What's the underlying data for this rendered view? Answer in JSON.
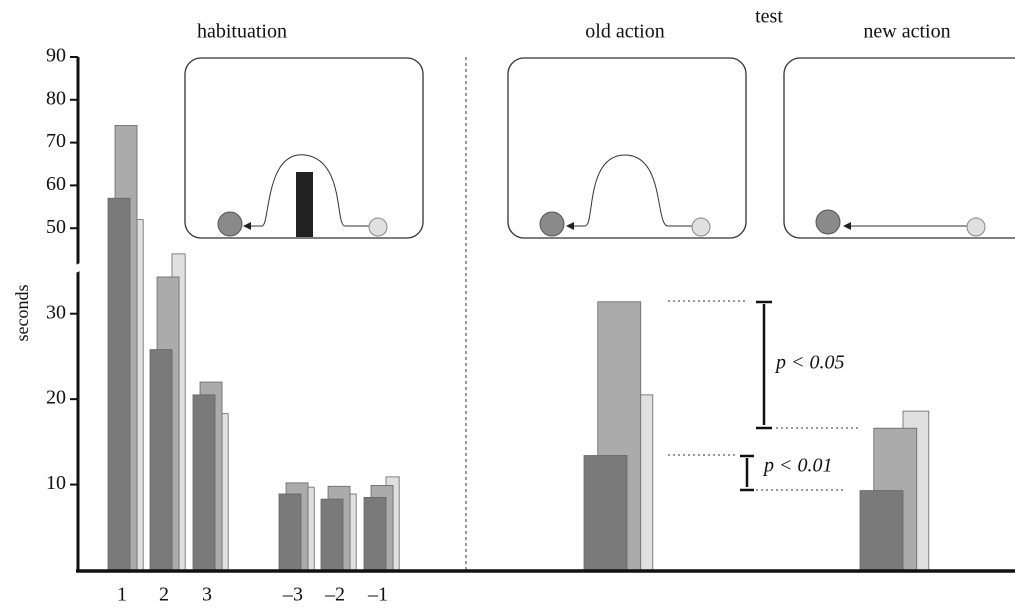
{
  "chart_data": {
    "type": "bar",
    "y_label": "seconds",
    "categories": [
      "1",
      "2",
      "3",
      "–3",
      "–2",
      "–1",
      null,
      null
    ],
    "series": [
      {
        "color": "#7a7a7a",
        "values": [
          57,
          25.8,
          20.5,
          8.9,
          8.3,
          8.5,
          13.4,
          9.3
        ]
      },
      {
        "color": "#ababab",
        "values": [
          74,
          34.3,
          22,
          10.2,
          9.8,
          9.9,
          31.4,
          16.6
        ]
      },
      {
        "color": "#e0e0e0",
        "values": [
          52,
          44,
          18.3,
          9.7,
          8.9,
          10.9,
          20.5,
          18.6
        ]
      }
    ],
    "ylim": [
      0,
      90
    ],
    "ybreak": [
      35,
      40
    ],
    "yticks": [
      10,
      20,
      30,
      50,
      60,
      70,
      80,
      90
    ],
    "annotations": {
      "habituation": "habituation",
      "test": "test",
      "old_action": "old action",
      "new_action": "new action",
      "p1": "p < 0.05",
      "p2": "p < 0.01"
    }
  }
}
